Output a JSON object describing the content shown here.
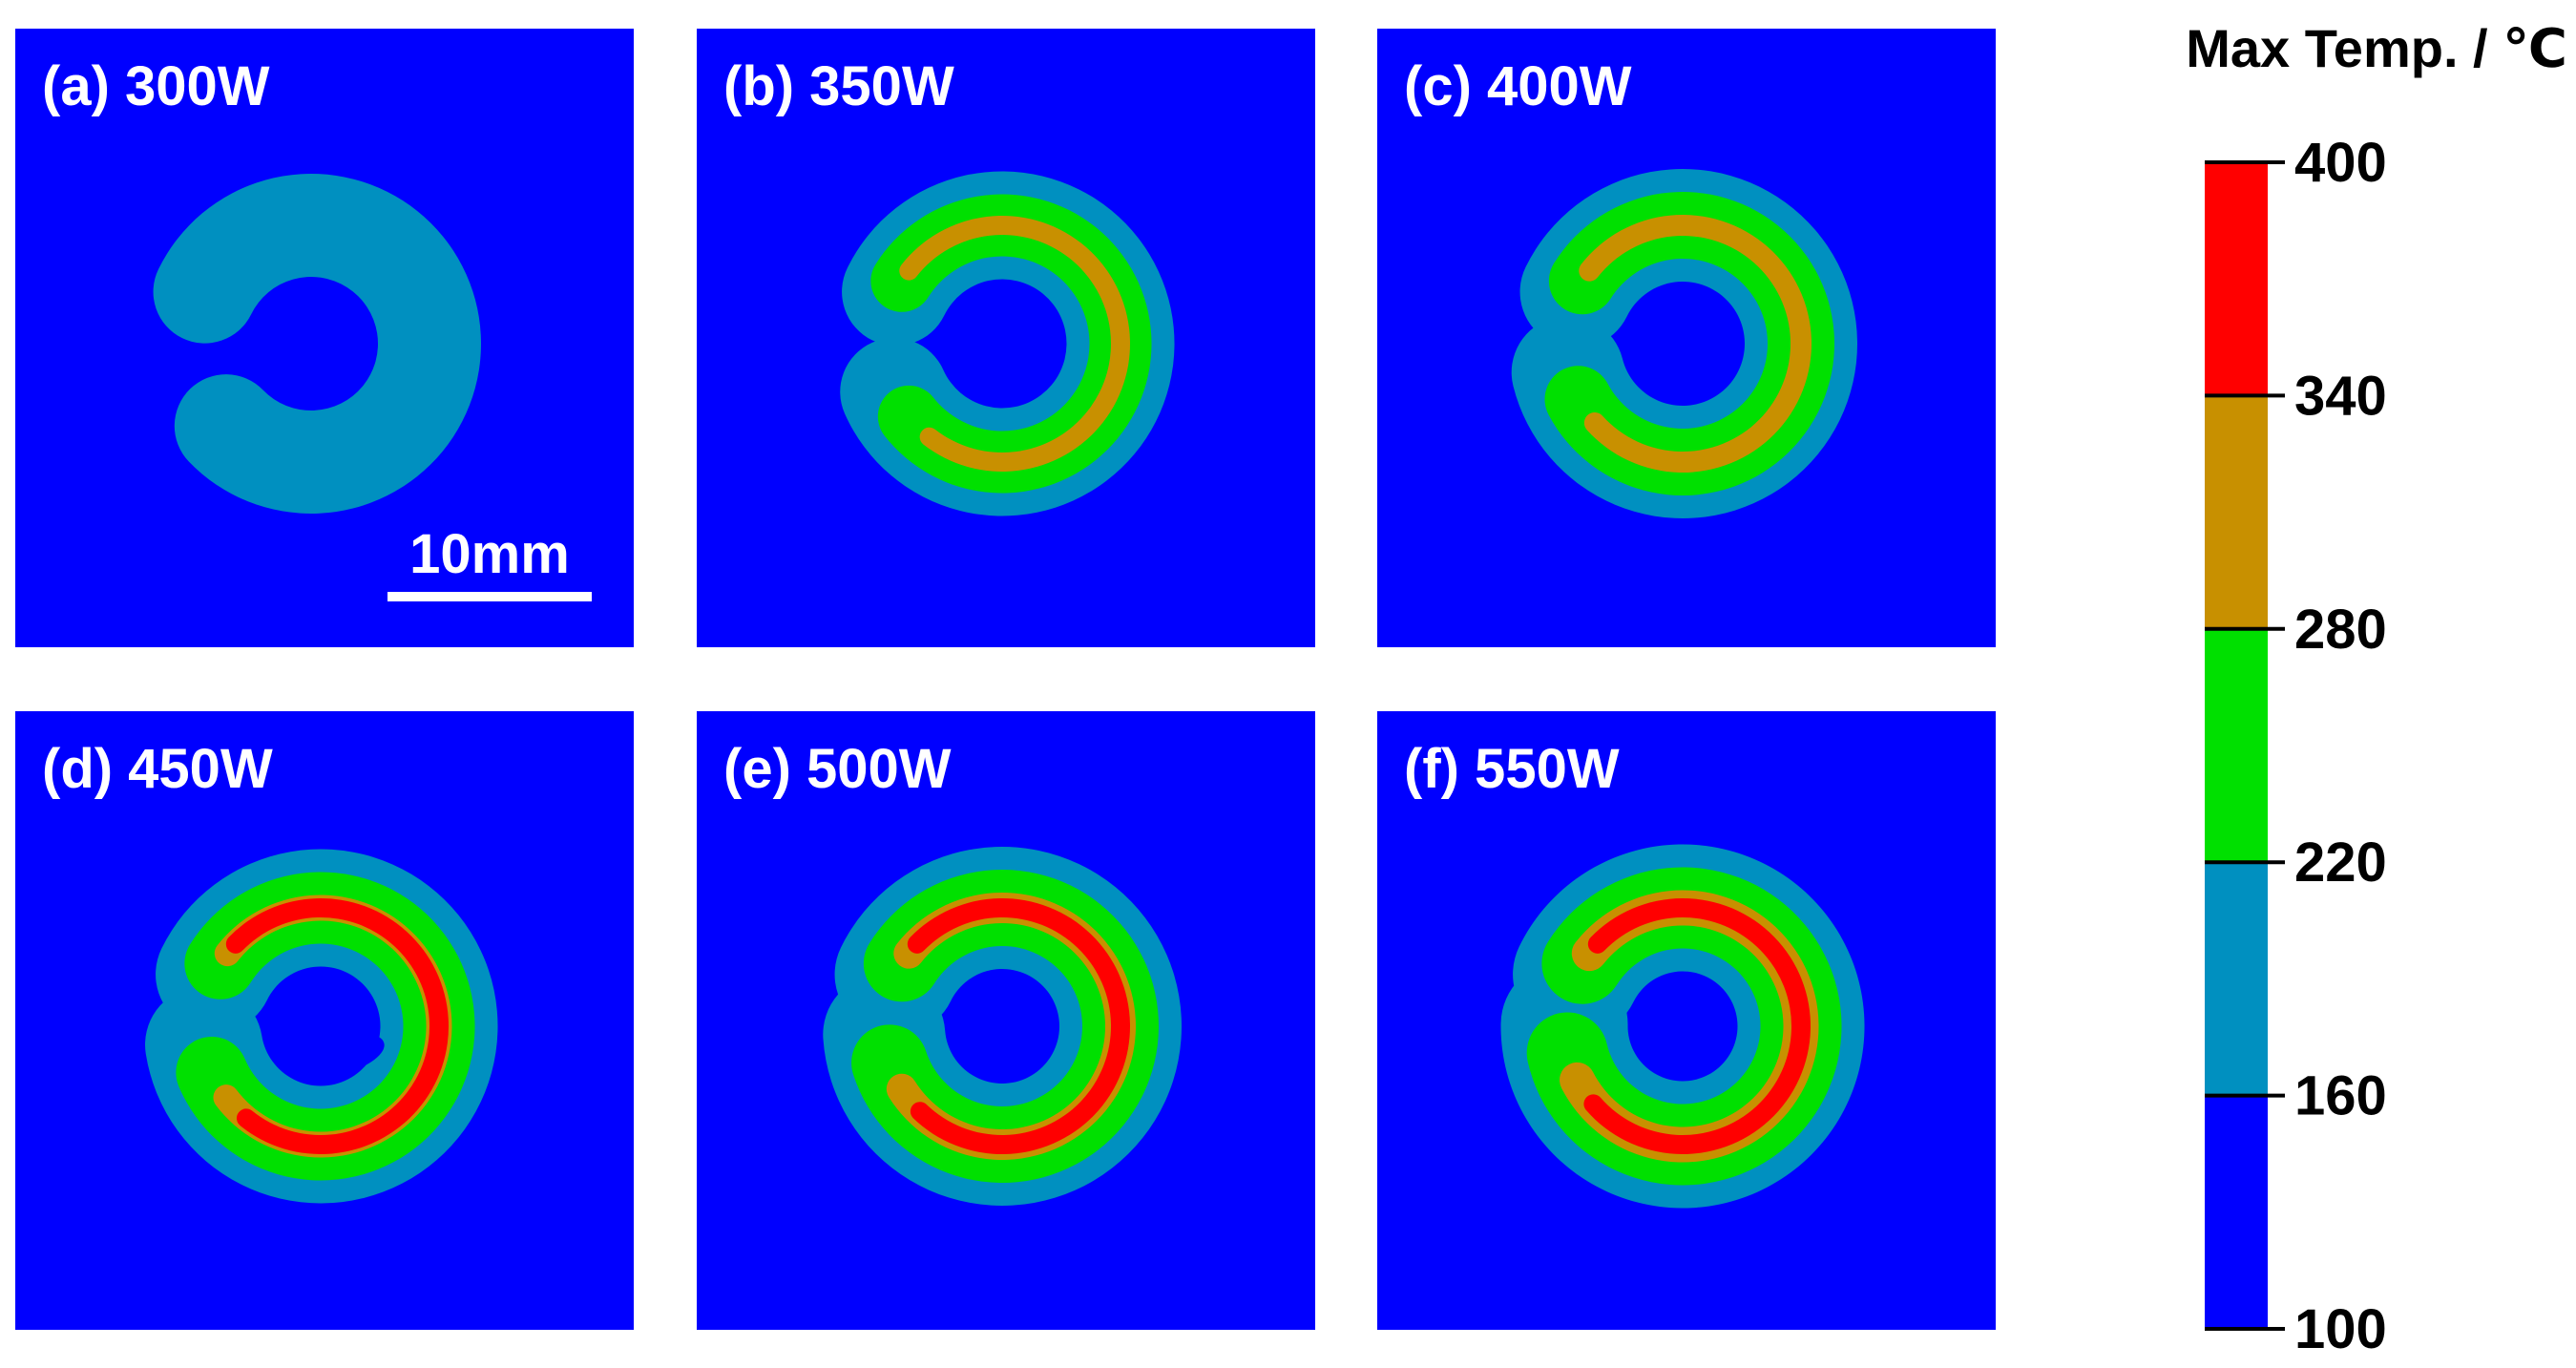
{
  "chart_data": {
    "type": "heatmap",
    "description_units": "Max Temp. / ℃",
    "panels": [
      {
        "label": "(a) 300W",
        "power_W": 300,
        "max_level": 220,
        "reach_deg": 310,
        "inner_cavity": false
      },
      {
        "label": "(b) 350W",
        "power_W": 350,
        "max_level": 340,
        "reach_deg": 330,
        "inner_cavity": false
      },
      {
        "label": "(c) 400W",
        "power_W": 400,
        "max_level": 340,
        "reach_deg": 340,
        "inner_cavity": false
      },
      {
        "label": "(d) 450W",
        "power_W": 450,
        "max_level": 400,
        "reach_deg": 345,
        "inner_cavity": true
      },
      {
        "label": "(e) 500W",
        "power_W": 500,
        "max_level": 400,
        "reach_deg": 350,
        "inner_cavity": true
      },
      {
        "label": "(f) 550W",
        "power_W": 550,
        "max_level": 400,
        "reach_deg": 355,
        "inner_cavity": false
      }
    ],
    "scale_bar": {
      "label": "10mm"
    },
    "colorbar": {
      "title": "Max Temp. / ℃",
      "ticks": [
        400,
        340,
        280,
        220,
        160,
        100
      ],
      "bands": [
        {
          "from": 100,
          "to": 160,
          "color": "#0000ff"
        },
        {
          "from": 160,
          "to": 220,
          "color": "#0090c0"
        },
        {
          "from": 220,
          "to": 280,
          "color": "#00e000"
        },
        {
          "from": 280,
          "to": 340,
          "color": "#c89000"
        },
        {
          "from": 340,
          "to": 400,
          "color": "#ff0000"
        }
      ]
    },
    "background_color": "#0000ff"
  }
}
